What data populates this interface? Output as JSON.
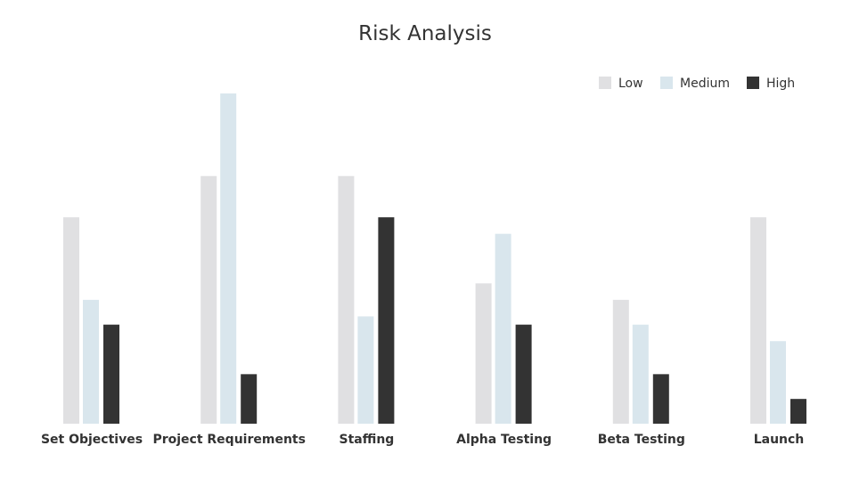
{
  "chart_data": {
    "type": "bar",
    "title": "Risk Analysis",
    "xlabel": "",
    "ylabel": "",
    "ylim": [
      0,
      40
    ],
    "grid": false,
    "legend_position": "top-right",
    "categories": [
      "Set Objectives",
      "Project Requirements",
      "Staffing",
      "Alpha Testing",
      "Beta Testing",
      "Launch"
    ],
    "series": [
      {
        "name": "Low",
        "color": "#e0e0e2",
        "values": [
          25,
          30,
          30,
          17,
          15,
          25
        ]
      },
      {
        "name": "Medium",
        "color": "#d9e6ed",
        "values": [
          15,
          40,
          13,
          23,
          12,
          10
        ]
      },
      {
        "name": "High",
        "color": "#333333",
        "values": [
          12,
          6,
          25,
          12,
          6,
          3
        ]
      }
    ]
  }
}
